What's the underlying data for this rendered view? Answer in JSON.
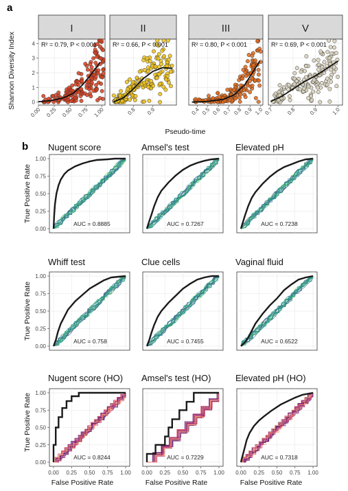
{
  "panel_labels": {
    "a": "a",
    "b": "b"
  },
  "section_a": {
    "ylabel": "Shannon Diversity Index",
    "xlabel": "Pseudo-time"
  },
  "section_b": {
    "ylabel": "True Positive Rate",
    "xlabel": "False Positive Rate"
  },
  "chart_data": [
    {
      "type": "scatter",
      "facet": "I",
      "annotation": "R² = 0.79, P < 0.001",
      "xlim": [
        0,
        1.05
      ],
      "ylim": [
        -0.2,
        4.3
      ],
      "xticks": [
        "0.00",
        "0.25",
        "0.50",
        "0.75",
        "1.00"
      ],
      "xtick_values": [
        0,
        0.25,
        0.5,
        0.75,
        1.0
      ],
      "yticks": [
        "0",
        "1",
        "2",
        "3",
        "4"
      ],
      "point_color": "#d8401e",
      "fit_curve": [
        [
          0,
          0.03
        ],
        [
          0.2,
          0.1
        ],
        [
          0.4,
          0.3
        ],
        [
          0.55,
          0.6
        ],
        [
          0.7,
          1.2
        ],
        [
          0.85,
          2.0
        ],
        [
          0.97,
          2.7
        ]
      ],
      "grid": true
    },
    {
      "type": "scatter",
      "facet": "II",
      "annotation": "R² = 0.66, P < 0.001",
      "xlim": [
        0.68,
        1.02
      ],
      "ylim": [
        -0.2,
        4.3
      ],
      "xticks": [
        "0.8",
        "0.9"
      ],
      "xtick_values": [
        0.8,
        0.9
      ],
      "point_color": "#eec21a",
      "fit_curve": [
        [
          0.7,
          0.02
        ],
        [
          0.75,
          0.3
        ],
        [
          0.8,
          0.9
        ],
        [
          0.85,
          1.6
        ],
        [
          0.9,
          2.1
        ],
        [
          0.95,
          2.35
        ],
        [
          1.0,
          2.3
        ]
      ],
      "grid": true
    },
    {
      "type": "scatter",
      "facet": "III",
      "annotation": "R² = 0.80, P < 0.001",
      "xlim": [
        0.32,
        1.02
      ],
      "ylim": [
        -0.2,
        4.3
      ],
      "xticks": [
        "0.4",
        "0.5",
        "0.6",
        "0.7",
        "0.8",
        "0.9",
        "1.0"
      ],
      "xtick_values": [
        0.4,
        0.5,
        0.6,
        0.7,
        0.8,
        0.9,
        1.0
      ],
      "point_color": "#e06a1b",
      "fit_curve": [
        [
          0.35,
          0.0
        ],
        [
          0.5,
          0.05
        ],
        [
          0.65,
          0.2
        ],
        [
          0.75,
          0.5
        ],
        [
          0.85,
          1.2
        ],
        [
          0.92,
          2.0
        ],
        [
          0.99,
          2.8
        ]
      ],
      "grid": true
    },
    {
      "type": "scatter",
      "facet": "V",
      "annotation": "R² = 0.69, P < 0.001",
      "xlim": [
        0.69,
        1.02
      ],
      "ylim": [
        -0.2,
        4.3
      ],
      "xticks": [
        "0.7",
        "0.8",
        "0.9",
        "1.0"
      ],
      "xtick_values": [
        0.7,
        0.8,
        0.9,
        1.0
      ],
      "point_color": "#d9d2bc",
      "fit_curve": [
        [
          0.7,
          0.05
        ],
        [
          0.75,
          0.4
        ],
        [
          0.8,
          0.9
        ],
        [
          0.85,
          1.4
        ],
        [
          0.9,
          1.8
        ],
        [
          0.95,
          2.3
        ],
        [
          1.0,
          2.8
        ]
      ],
      "grid": true
    },
    {
      "type": "line",
      "title": "Nugent score",
      "auc": "AUC = 0.8885",
      "palette": "viridis",
      "xlim": [
        0,
        1
      ],
      "ylim": [
        0,
        1
      ],
      "yticks": [
        "0.00",
        "0.25",
        "0.50",
        "0.75",
        "1.00"
      ],
      "roc": [
        [
          0,
          0
        ],
        [
          0.01,
          0.2
        ],
        [
          0.02,
          0.35
        ],
        [
          0.04,
          0.5
        ],
        [
          0.07,
          0.62
        ],
        [
          0.1,
          0.7
        ],
        [
          0.15,
          0.78
        ],
        [
          0.2,
          0.83
        ],
        [
          0.3,
          0.89
        ],
        [
          0.4,
          0.93
        ],
        [
          0.5,
          0.96
        ],
        [
          0.6,
          0.98
        ],
        [
          0.75,
          0.99
        ],
        [
          0.85,
          1
        ],
        [
          1,
          1
        ]
      ]
    },
    {
      "type": "line",
      "title": "Amsel's test",
      "auc": "AUC = 0.7267",
      "palette": "viridis",
      "xlim": [
        0,
        1
      ],
      "ylim": [
        0,
        1
      ],
      "roc": [
        [
          0,
          0
        ],
        [
          0.03,
          0.1
        ],
        [
          0.07,
          0.22
        ],
        [
          0.1,
          0.32
        ],
        [
          0.15,
          0.45
        ],
        [
          0.2,
          0.54
        ],
        [
          0.3,
          0.66
        ],
        [
          0.4,
          0.76
        ],
        [
          0.5,
          0.84
        ],
        [
          0.6,
          0.9
        ],
        [
          0.7,
          0.94
        ],
        [
          0.8,
          0.97
        ],
        [
          0.9,
          0.99
        ],
        [
          1,
          1
        ]
      ]
    },
    {
      "type": "line",
      "title": "Elevated pH",
      "auc": "AUC = 0.7238",
      "palette": "viridis",
      "xlim": [
        0,
        1
      ],
      "ylim": [
        0,
        1
      ],
      "roc": [
        [
          0,
          0
        ],
        [
          0.03,
          0.1
        ],
        [
          0.06,
          0.2
        ],
        [
          0.1,
          0.32
        ],
        [
          0.15,
          0.44
        ],
        [
          0.2,
          0.52
        ],
        [
          0.3,
          0.64
        ],
        [
          0.4,
          0.74
        ],
        [
          0.5,
          0.82
        ],
        [
          0.6,
          0.88
        ],
        [
          0.7,
          0.92
        ],
        [
          0.8,
          0.96
        ],
        [
          0.9,
          0.99
        ],
        [
          1,
          1
        ]
      ]
    },
    {
      "type": "line",
      "title": "Whiff test",
      "auc": "AUC = 0.758",
      "palette": "viridis",
      "xlim": [
        0,
        1
      ],
      "ylim": [
        0,
        1
      ],
      "yticks": [
        "0.00",
        "0.25",
        "0.50",
        "0.75",
        "1.00"
      ],
      "roc": [
        [
          0,
          0
        ],
        [
          0.03,
          0.08
        ],
        [
          0.06,
          0.2
        ],
        [
          0.1,
          0.32
        ],
        [
          0.15,
          0.42
        ],
        [
          0.2,
          0.52
        ],
        [
          0.3,
          0.64
        ],
        [
          0.4,
          0.73
        ],
        [
          0.5,
          0.82
        ],
        [
          0.6,
          0.88
        ],
        [
          0.7,
          0.94
        ],
        [
          0.8,
          0.98
        ],
        [
          0.9,
          0.99
        ],
        [
          1,
          1
        ]
      ]
    },
    {
      "type": "line",
      "title": "Clue cells",
      "auc": "AUC = 0.7455",
      "palette": "viridis",
      "xlim": [
        0,
        1
      ],
      "ylim": [
        0,
        1
      ],
      "roc": [
        [
          0,
          0
        ],
        [
          0.03,
          0.08
        ],
        [
          0.06,
          0.18
        ],
        [
          0.1,
          0.3
        ],
        [
          0.15,
          0.42
        ],
        [
          0.2,
          0.5
        ],
        [
          0.3,
          0.62
        ],
        [
          0.4,
          0.72
        ],
        [
          0.5,
          0.82
        ],
        [
          0.6,
          0.89
        ],
        [
          0.7,
          0.95
        ],
        [
          0.8,
          0.98
        ],
        [
          0.9,
          1
        ],
        [
          1,
          1
        ]
      ]
    },
    {
      "type": "line",
      "title": "Vaginal fluid",
      "auc": "AUC = 0.6522",
      "palette": "viridis",
      "xlim": [
        0,
        1
      ],
      "ylim": [
        0,
        1
      ],
      "roc": [
        [
          0,
          0
        ],
        [
          0.05,
          0.05
        ],
        [
          0.1,
          0.12
        ],
        [
          0.15,
          0.22
        ],
        [
          0.2,
          0.32
        ],
        [
          0.3,
          0.46
        ],
        [
          0.4,
          0.58
        ],
        [
          0.5,
          0.68
        ],
        [
          0.6,
          0.8
        ],
        [
          0.7,
          0.88
        ],
        [
          0.8,
          0.95
        ],
        [
          0.9,
          0.98
        ],
        [
          1,
          1
        ]
      ]
    },
    {
      "type": "line",
      "title": "Nugent score (HO)",
      "auc": "AUC = 0.8244",
      "palette": "magma",
      "xlim": [
        0,
        1
      ],
      "ylim": [
        0,
        1
      ],
      "yticks": [
        "0.00",
        "0.25",
        "0.50",
        "0.75",
        "1.00"
      ],
      "xticks": [
        "0.00",
        "0.25",
        "0.50",
        "0.75",
        "1.00"
      ],
      "roc": [
        [
          0,
          0
        ],
        [
          0,
          0.25
        ],
        [
          0.03,
          0.25
        ],
        [
          0.03,
          0.5
        ],
        [
          0.07,
          0.5
        ],
        [
          0.07,
          0.65
        ],
        [
          0.12,
          0.65
        ],
        [
          0.12,
          0.78
        ],
        [
          0.18,
          0.78
        ],
        [
          0.18,
          0.88
        ],
        [
          0.25,
          0.88
        ],
        [
          0.25,
          0.95
        ],
        [
          0.35,
          0.95
        ],
        [
          0.35,
          1
        ],
        [
          1,
          1
        ]
      ]
    },
    {
      "type": "line",
      "title": "Amsel's test (HO)",
      "auc": "AUC = 0.7229",
      "palette": "magma",
      "xlim": [
        0,
        1
      ],
      "ylim": [
        0,
        1
      ],
      "xticks": [
        "0.00",
        "0.25",
        "0.50",
        "0.75",
        "1.00"
      ],
      "roc": [
        [
          0,
          0
        ],
        [
          0,
          0.12
        ],
        [
          0.12,
          0.12
        ],
        [
          0.12,
          0.25
        ],
        [
          0.25,
          0.25
        ],
        [
          0.25,
          0.37
        ],
        [
          0.3,
          0.37
        ],
        [
          0.3,
          0.5
        ],
        [
          0.35,
          0.5
        ],
        [
          0.35,
          0.62
        ],
        [
          0.45,
          0.62
        ],
        [
          0.45,
          0.75
        ],
        [
          0.55,
          0.75
        ],
        [
          0.55,
          0.87
        ],
        [
          0.65,
          0.87
        ],
        [
          0.65,
          1
        ],
        [
          1,
          1
        ]
      ]
    },
    {
      "type": "line",
      "title": "Elevated pH (HO)",
      "auc": "AUC = 0.7318",
      "palette": "magma",
      "xlim": [
        0,
        1
      ],
      "ylim": [
        0,
        1
      ],
      "xticks": [
        "0.00",
        "0.25",
        "0.50",
        "0.75",
        "1.00"
      ],
      "roc": [
        [
          0,
          0
        ],
        [
          0.02,
          0.08
        ],
        [
          0.05,
          0.2
        ],
        [
          0.08,
          0.32
        ],
        [
          0.12,
          0.42
        ],
        [
          0.18,
          0.52
        ],
        [
          0.25,
          0.6
        ],
        [
          0.32,
          0.66
        ],
        [
          0.42,
          0.74
        ],
        [
          0.55,
          0.83
        ],
        [
          0.65,
          0.88
        ],
        [
          0.75,
          0.93
        ],
        [
          0.85,
          0.97
        ],
        [
          1,
          1
        ]
      ]
    }
  ]
}
